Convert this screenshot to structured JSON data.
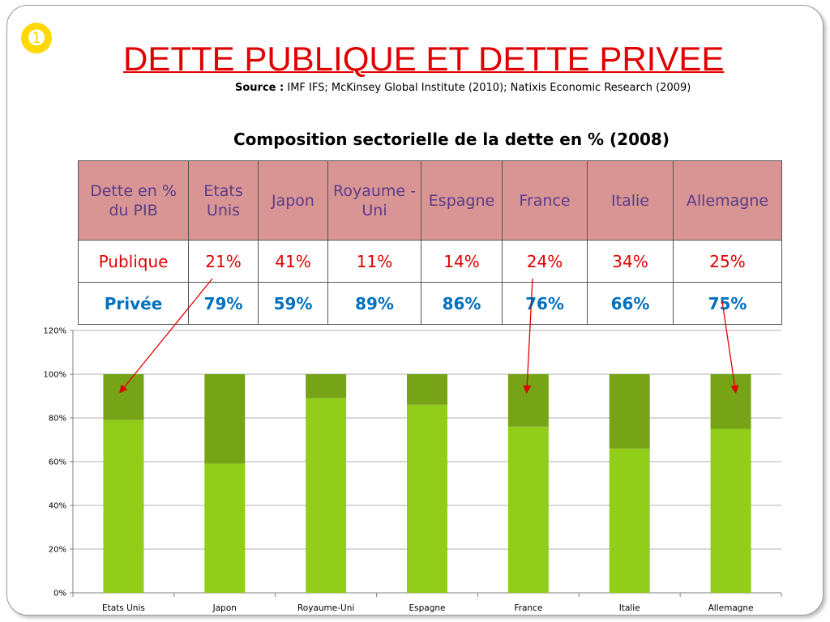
{
  "slide": {
    "number_glyph": "➊",
    "title": "DETTE PUBLIQUE ET DETTE PRIVEE",
    "source_label": "Source :",
    "source_text": "IMF IFS;  McKinsey Global Institute (2010); Natixis Economic Research (2009)",
    "table_title": "Composition sectorielle de la dette en % (2008)"
  },
  "table": {
    "header_label": "Dette en % du PIB",
    "columns": [
      "Etats Unis",
      "Japon",
      "Royaume -Uni",
      "Espagne",
      "France",
      "Italie",
      "Allemagne"
    ],
    "rows": [
      {
        "label": "Publique",
        "values": [
          "21%",
          "41%",
          "11%",
          "14%",
          "24%",
          "34%",
          "25%"
        ]
      },
      {
        "label": "Privée",
        "values": [
          "79%",
          "59%",
          "89%",
          "86%",
          "76%",
          "66%",
          "75%"
        ]
      }
    ]
  },
  "colors": {
    "private_bar": "#92cd1a",
    "public_bar": "#77a316",
    "title": "#e00000",
    "header_bg": "#d99594",
    "header_text": "#5b3b8c",
    "public_text": "#e00000",
    "private_text": "#0070c0",
    "arrow": "#e00000"
  },
  "chart_data": {
    "type": "bar",
    "stacked": true,
    "categories": [
      "Etats Unis",
      "Japon",
      "Royaume-Uni",
      "Espagne",
      "France",
      "Italie",
      "Allemagne"
    ],
    "series": [
      {
        "name": "Privée",
        "values": [
          79,
          59,
          89,
          86,
          76,
          66,
          75
        ]
      },
      {
        "name": "Publique",
        "values": [
          21,
          41,
          11,
          14,
          24,
          34,
          25
        ]
      }
    ],
    "ylim": [
      0,
      120
    ],
    "yticks": [
      "0%",
      "20%",
      "40%",
      "60%",
      "80%",
      "100%",
      "120%"
    ],
    "ytick_values": [
      0,
      20,
      40,
      60,
      80,
      100,
      120
    ],
    "grid": true,
    "legend": "none",
    "annotations": [
      {
        "type": "arrow",
        "from_table_column": "Etats Unis",
        "to_category": "Etats Unis",
        "at_value": 100
      },
      {
        "type": "arrow",
        "from_table_column": "France",
        "to_category": "France",
        "at_value": 100
      },
      {
        "type": "arrow",
        "from_table_column": "Allemagne",
        "to_category": "Allemagne",
        "at_value": 100
      }
    ]
  }
}
